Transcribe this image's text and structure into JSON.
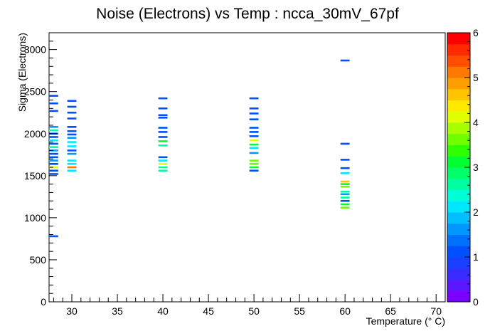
{
  "chart_data": {
    "type": "heatmap",
    "title": "Noise (Electrons) vs Temp : ncca_30mV_67pf",
    "xlabel": "Temperature (° C)",
    "ylabel": "Sigma (Electrons)",
    "xlim": [
      27.5,
      71
    ],
    "ylim": [
      0,
      3200
    ],
    "x_ticks": [
      30,
      35,
      40,
      45,
      50,
      55,
      60,
      65,
      70
    ],
    "y_ticks": [
      0,
      500,
      1000,
      1500,
      2000,
      2500,
      3000
    ],
    "zlim": [
      0,
      6
    ],
    "z_ticks": [
      0,
      1,
      2,
      3,
      4,
      5,
      6
    ],
    "grid": false,
    "palette": [
      "#7a00ff",
      "#5a18ff",
      "#3a2cff",
      "#1a40ff",
      "#0050ff",
      "#0070ff",
      "#0098ff",
      "#00c0ff",
      "#00e8ff",
      "#00ffd8",
      "#00ffa0",
      "#00ff68",
      "#00ff30",
      "#30ff00",
      "#70ff00",
      "#a8ff00",
      "#e0ff00",
      "#ffea00",
      "#ffc400",
      "#ff9e00",
      "#ff7800",
      "#ff4e00",
      "#ff2a00",
      "#ff0000"
    ],
    "bin_width_x": 1,
    "bin_height_y": 22,
    "bins": [
      {
        "x": 28,
        "y": 2450,
        "z": 1
      },
      {
        "x": 28,
        "y": 2360,
        "z": 1
      },
      {
        "x": 28,
        "y": 2270,
        "z": 1
      },
      {
        "x": 28,
        "y": 2080,
        "z": 1.5
      },
      {
        "x": 28,
        "y": 2040,
        "z": 2.5
      },
      {
        "x": 28,
        "y": 2000,
        "z": 1
      },
      {
        "x": 28,
        "y": 1960,
        "z": 1
      },
      {
        "x": 28,
        "y": 1920,
        "z": 2
      },
      {
        "x": 28,
        "y": 1880,
        "z": 1
      },
      {
        "x": 28,
        "y": 1840,
        "z": 2.5
      },
      {
        "x": 28,
        "y": 1800,
        "z": 1.5
      },
      {
        "x": 28,
        "y": 1760,
        "z": 1
      },
      {
        "x": 28,
        "y": 1720,
        "z": 1
      },
      {
        "x": 28,
        "y": 1680,
        "z": 1.5
      },
      {
        "x": 28,
        "y": 1640,
        "z": 1
      },
      {
        "x": 28,
        "y": 1600,
        "z": 4
      },
      {
        "x": 28,
        "y": 1560,
        "z": 1
      },
      {
        "x": 28,
        "y": 1520,
        "z": 1
      },
      {
        "x": 28,
        "y": 780,
        "z": 1
      },
      {
        "x": 30,
        "y": 2390,
        "z": 1
      },
      {
        "x": 30,
        "y": 2320,
        "z": 1
      },
      {
        "x": 30,
        "y": 2250,
        "z": 1
      },
      {
        "x": 30,
        "y": 2180,
        "z": 1
      },
      {
        "x": 30,
        "y": 2080,
        "z": 1
      },
      {
        "x": 30,
        "y": 2030,
        "z": 1
      },
      {
        "x": 30,
        "y": 1990,
        "z": 1
      },
      {
        "x": 30,
        "y": 1950,
        "z": 1.5
      },
      {
        "x": 30,
        "y": 1900,
        "z": 2
      },
      {
        "x": 30,
        "y": 1850,
        "z": 2
      },
      {
        "x": 30,
        "y": 1800,
        "z": 1
      },
      {
        "x": 30,
        "y": 1760,
        "z": 1.5
      },
      {
        "x": 30,
        "y": 1680,
        "z": 2
      },
      {
        "x": 30,
        "y": 1640,
        "z": 2
      },
      {
        "x": 30,
        "y": 1600,
        "z": 5
      },
      {
        "x": 30,
        "y": 1560,
        "z": 2
      },
      {
        "x": 40,
        "y": 2420,
        "z": 1
      },
      {
        "x": 40,
        "y": 2300,
        "z": 1
      },
      {
        "x": 40,
        "y": 2220,
        "z": 1
      },
      {
        "x": 40,
        "y": 2190,
        "z": 1
      },
      {
        "x": 40,
        "y": 2070,
        "z": 1
      },
      {
        "x": 40,
        "y": 2020,
        "z": 1
      },
      {
        "x": 40,
        "y": 1960,
        "z": 1
      },
      {
        "x": 40,
        "y": 1910,
        "z": 3
      },
      {
        "x": 40,
        "y": 1860,
        "z": 2.5
      },
      {
        "x": 40,
        "y": 1720,
        "z": 1
      },
      {
        "x": 40,
        "y": 1680,
        "z": 2
      },
      {
        "x": 40,
        "y": 1640,
        "z": 4
      },
      {
        "x": 40,
        "y": 1600,
        "z": 2.5
      },
      {
        "x": 40,
        "y": 1560,
        "z": 2.5
      },
      {
        "x": 50,
        "y": 2420,
        "z": 1
      },
      {
        "x": 50,
        "y": 2300,
        "z": 1
      },
      {
        "x": 50,
        "y": 2240,
        "z": 1
      },
      {
        "x": 50,
        "y": 2170,
        "z": 1
      },
      {
        "x": 50,
        "y": 2070,
        "z": 1
      },
      {
        "x": 50,
        "y": 2020,
        "z": 1
      },
      {
        "x": 50,
        "y": 1970,
        "z": 1
      },
      {
        "x": 50,
        "y": 1920,
        "z": 4
      },
      {
        "x": 50,
        "y": 1870,
        "z": 3
      },
      {
        "x": 50,
        "y": 1830,
        "z": 2
      },
      {
        "x": 50,
        "y": 1770,
        "z": 1.5
      },
      {
        "x": 50,
        "y": 1680,
        "z": 3.5
      },
      {
        "x": 50,
        "y": 1640,
        "z": 3.5
      },
      {
        "x": 50,
        "y": 1600,
        "z": 3
      },
      {
        "x": 50,
        "y": 1560,
        "z": 1
      },
      {
        "x": 60,
        "y": 2870,
        "z": 1
      },
      {
        "x": 60,
        "y": 1880,
        "z": 1
      },
      {
        "x": 60,
        "y": 1690,
        "z": 1
      },
      {
        "x": 60,
        "y": 1590,
        "z": 1
      },
      {
        "x": 60,
        "y": 1530,
        "z": 2
      },
      {
        "x": 60,
        "y": 1430,
        "z": 4.5
      },
      {
        "x": 60,
        "y": 1400,
        "z": 3
      },
      {
        "x": 60,
        "y": 1370,
        "z": 3.5
      },
      {
        "x": 60,
        "y": 1310,
        "z": 2.5
      },
      {
        "x": 60,
        "y": 1280,
        "z": 1.5
      },
      {
        "x": 60,
        "y": 1240,
        "z": 2.5
      },
      {
        "x": 60,
        "y": 1200,
        "z": 1
      },
      {
        "x": 60,
        "y": 1160,
        "z": 3
      },
      {
        "x": 60,
        "y": 1120,
        "z": 3.5
      }
    ]
  }
}
